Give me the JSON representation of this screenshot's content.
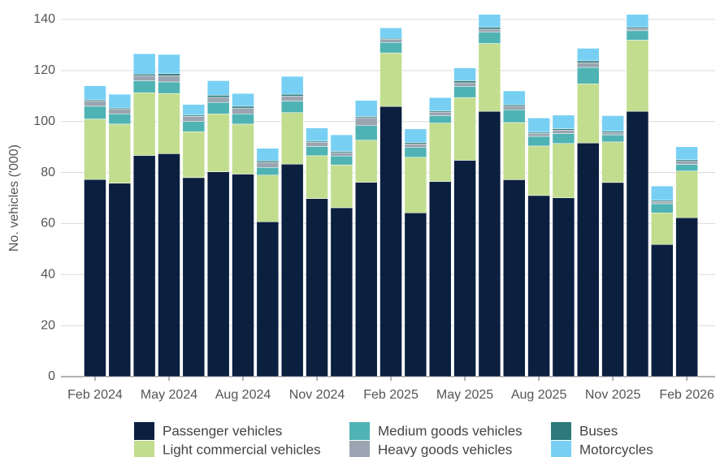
{
  "chart_data": {
    "type": "stacked_bar",
    "y_label": "No. vehicles ('000)",
    "categories": [
      "Feb 2024",
      null,
      null,
      "May 2024",
      null,
      null,
      "Aug 2024",
      null,
      null,
      "Nov 2024",
      null,
      null,
      "Feb 2025",
      null,
      null,
      "May 2025",
      null,
      null,
      "Aug 2025",
      null,
      null,
      "Nov 2025",
      null,
      null,
      "Feb 2026"
    ],
    "series": [
      {
        "name": "Passenger vehicles",
        "color": "#0b1f3f",
        "values": [
          77.3,
          75.8,
          86.7,
          87.4,
          78,
          80.3,
          79.4,
          60.7,
          83.3,
          69.8,
          66.2,
          76.2,
          105.9,
          64.2,
          76.5,
          84.8,
          104,
          77.2,
          71,
          70.1,
          91.6,
          76.1,
          104,
          51.8,
          62.3
        ]
      },
      {
        "name": "Light commercial vehicles",
        "color": "#c2dd8e",
        "values": [
          23.7,
          23.2,
          24.6,
          23.6,
          18,
          22.7,
          19.6,
          18.3,
          20.2,
          16.8,
          16.8,
          16.5,
          21,
          21.8,
          22.9,
          24.6,
          26.6,
          22.4,
          19.4,
          21.3,
          23.2,
          15.9,
          27.9,
          12.4,
          18.3
        ]
      },
      {
        "name": "Medium goods vehicles",
        "color": "#4fb3b4",
        "values": [
          5,
          4,
          4.7,
          4.5,
          4,
          4.5,
          4,
          3,
          4.5,
          3.6,
          3.5,
          5.7,
          4.1,
          3.8,
          2.9,
          4.4,
          4.4,
          5,
          3.8,
          3.9,
          6.4,
          2.8,
          3.7,
          3.6,
          2.6
        ]
      },
      {
        "name": "Heavy goods vehicles",
        "color": "#9aa5b1",
        "values": [
          2,
          1.8,
          2,
          2.5,
          2,
          2,
          2.3,
          2,
          2,
          1.6,
          1.3,
          3.1,
          1.2,
          1.4,
          1.4,
          1.4,
          1.2,
          1.4,
          1.1,
          1.3,
          1.8,
          0.9,
          0.8,
          0.8,
          1.2
        ]
      },
      {
        "name": "Buses",
        "color": "#2c7a7b",
        "values": [
          0.5,
          0.5,
          0.6,
          0.8,
          0.5,
          0.8,
          0.7,
          0.6,
          0.7,
          0.5,
          0.5,
          0.5,
          0.4,
          0.6,
          0.5,
          0.8,
          0.8,
          0.6,
          0.5,
          0.6,
          0.8,
          0.5,
          0.6,
          0.5,
          0.6
        ]
      },
      {
        "name": "Motorcycles",
        "color": "#77d0f3",
        "values": [
          5.5,
          5.4,
          8,
          7.5,
          4.2,
          5.7,
          5,
          4.9,
          7,
          5.2,
          6.5,
          6.3,
          4.1,
          5.3,
          5.2,
          5,
          5,
          5.4,
          5.6,
          5.3,
          4.9,
          6.1,
          5,
          5.6,
          5.1
        ]
      }
    ],
    "ylim": [
      0,
      140
    ],
    "yticks": [
      0,
      20,
      40,
      60,
      80,
      100,
      120,
      140
    ],
    "grid": true,
    "legend": "bottom"
  }
}
